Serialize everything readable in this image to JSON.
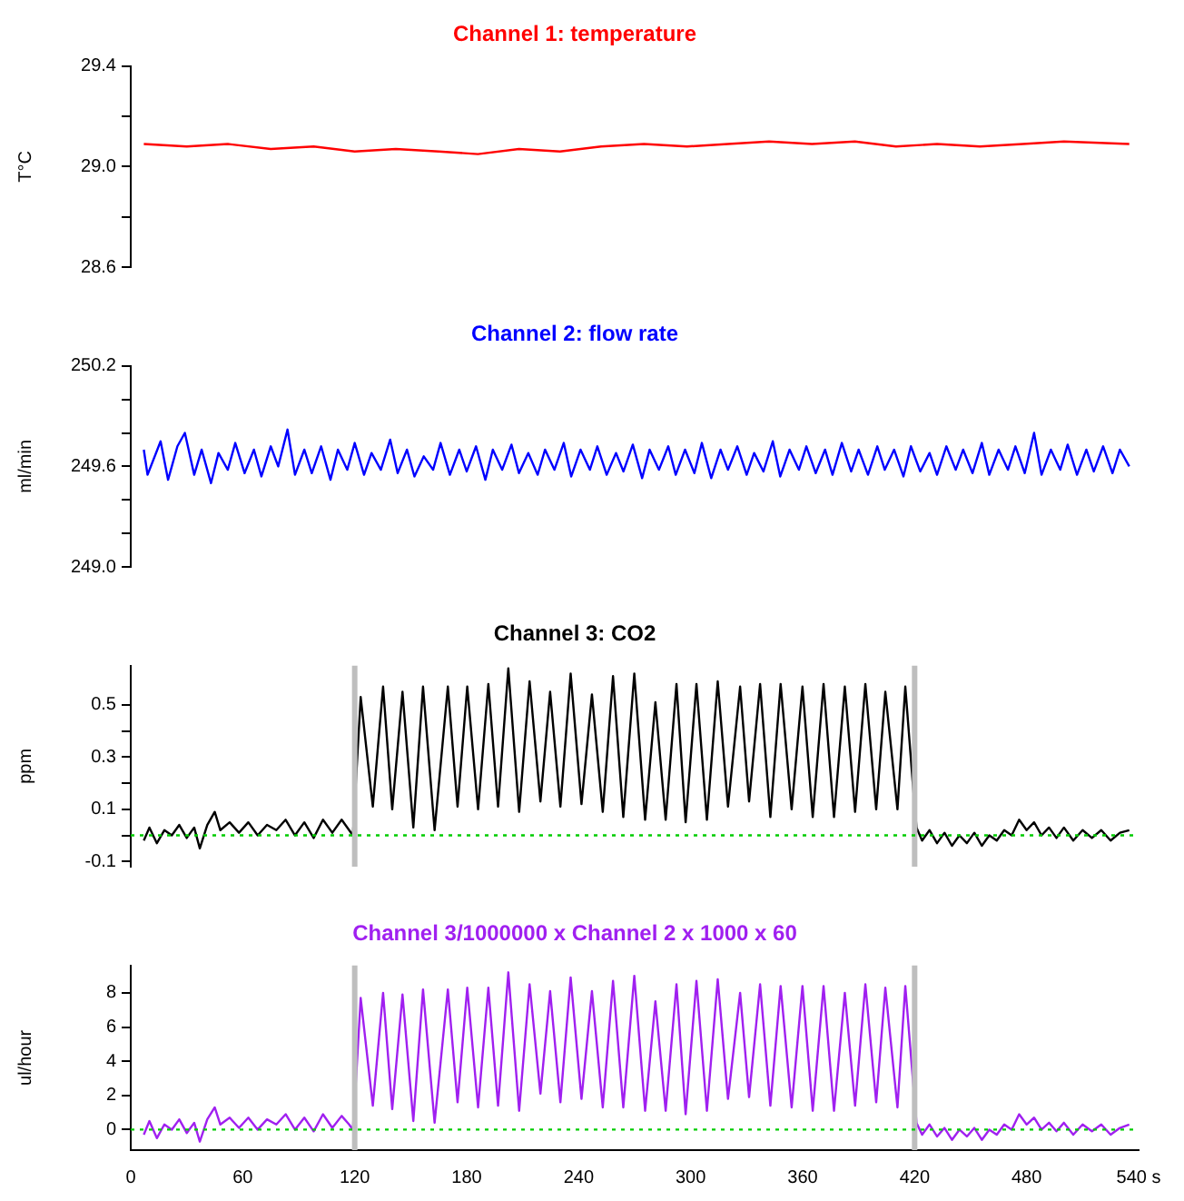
{
  "chart_data": [
    {
      "type": "line",
      "title": "Channel 1: temperature",
      "ylabel": "T°C",
      "xlim": [
        0,
        540
      ],
      "ylim": [
        28.6,
        29.4
      ],
      "yticks": [
        28.6,
        {
          "value": 28.8,
          "label": null
        },
        {
          "value": 29,
          "label": "29.0"
        },
        {
          "value": 29.2,
          "label": null
        },
        29.4
      ],
      "tick_labels": "y",
      "series": [
        {
          "color": "#ff0000",
          "x": [
            7,
            30,
            52,
            75,
            98,
            120,
            142,
            165,
            186,
            208,
            230,
            252,
            275,
            298,
            320,
            342,
            365,
            388,
            410,
            432,
            455,
            478,
            500,
            535
          ],
          "values": [
            29.09,
            29.08,
            29.09,
            29.07,
            29.08,
            29.06,
            29.07,
            29.06,
            29.05,
            29.07,
            29.06,
            29.08,
            29.09,
            29.08,
            29.09,
            29.1,
            29.09,
            29.1,
            29.08,
            29.09,
            29.08,
            29.09,
            29.1,
            29.09
          ]
        }
      ]
    },
    {
      "type": "line",
      "title": "Channel 2: flow rate",
      "ylabel": "ml/min",
      "xlim": [
        0,
        540
      ],
      "ylim": [
        249,
        250.2
      ],
      "yticks": [
        {
          "value": 249,
          "label": "249.0"
        },
        {
          "value": 249.2,
          "label": null
        },
        {
          "value": 249.4,
          "label": null
        },
        249.6,
        {
          "value": 249.8,
          "label": null
        },
        {
          "value": 250,
          "label": null
        },
        250.2
      ],
      "tick_labels": "y",
      "series": [
        {
          "color": "#0000ff",
          "x": [
            7,
            9,
            16,
            20,
            25,
            29,
            34,
            38,
            43,
            47,
            52,
            56,
            61,
            66,
            70,
            75,
            79,
            84,
            88,
            93,
            97,
            102,
            107,
            111,
            116,
            120,
            125,
            129,
            134,
            139,
            143,
            148,
            152,
            157,
            162,
            166,
            171,
            176,
            180,
            185,
            190,
            194,
            199,
            204,
            208,
            213,
            218,
            222,
            227,
            232,
            236,
            241,
            246,
            250,
            255,
            260,
            264,
            269,
            274,
            278,
            283,
            288,
            292,
            297,
            302,
            306,
            311,
            316,
            320,
            325,
            330,
            334,
            339,
            344,
            348,
            353,
            358,
            362,
            367,
            372,
            376,
            381,
            386,
            390,
            395,
            400,
            404,
            409,
            414,
            418,
            423,
            428,
            432,
            437,
            442,
            446,
            451,
            456,
            460,
            465,
            470,
            474,
            479,
            484,
            488,
            493,
            498,
            502,
            507,
            512,
            516,
            521,
            526,
            530,
            535
          ],
          "values": [
            249.7,
            249.55,
            249.75,
            249.52,
            249.72,
            249.8,
            249.55,
            249.7,
            249.5,
            249.68,
            249.58,
            249.74,
            249.56,
            249.7,
            249.54,
            249.72,
            249.6,
            249.82,
            249.55,
            249.7,
            249.56,
            249.72,
            249.52,
            249.7,
            249.58,
            249.74,
            249.55,
            249.68,
            249.58,
            249.76,
            249.56,
            249.7,
            249.54,
            249.66,
            249.58,
            249.74,
            249.55,
            249.7,
            249.57,
            249.72,
            249.52,
            249.7,
            249.58,
            249.73,
            249.56,
            249.68,
            249.55,
            249.7,
            249.58,
            249.74,
            249.54,
            249.7,
            249.58,
            249.72,
            249.55,
            249.68,
            249.57,
            249.73,
            249.53,
            249.7,
            249.58,
            249.72,
            249.55,
            249.7,
            249.56,
            249.74,
            249.53,
            249.7,
            249.58,
            249.72,
            249.55,
            249.68,
            249.57,
            249.75,
            249.54,
            249.7,
            249.58,
            249.72,
            249.56,
            249.7,
            249.55,
            249.74,
            249.57,
            249.7,
            249.55,
            249.72,
            249.58,
            249.7,
            249.54,
            249.72,
            249.57,
            249.68,
            249.55,
            249.72,
            249.58,
            249.7,
            249.56,
            249.74,
            249.55,
            249.7,
            249.58,
            249.72,
            249.56,
            249.8,
            249.55,
            249.7,
            249.58,
            249.73,
            249.55,
            249.7,
            249.57,
            249.72,
            249.56,
            249.7,
            249.6
          ]
        }
      ]
    },
    {
      "type": "line",
      "title": "Channel 3: CO2",
      "ylabel": "ppm",
      "xlim": [
        0,
        540
      ],
      "ylim": [
        -0.12,
        0.65
      ],
      "yticks": [
        -0.1,
        {
          "value": 0,
          "label": null
        },
        0.1,
        {
          "value": 0.2,
          "label": null
        },
        0.3,
        {
          "value": 0.4,
          "label": null
        },
        0.5
      ],
      "tick_labels": "y",
      "ref_lines": [
        {
          "axis": "x",
          "value": 120,
          "color": "#bebebe"
        },
        {
          "axis": "x",
          "value": 420,
          "color": "#bebebe"
        },
        {
          "axis": "y",
          "value": 0,
          "color": "#00cc00",
          "line_style": "dotted"
        }
      ],
      "series": [
        {
          "color": "#000000",
          "x": [
            7,
            10,
            14,
            18,
            22,
            26,
            30,
            34,
            37,
            41,
            45,
            48,
            53,
            58,
            63,
            68,
            73,
            78,
            83,
            88,
            93,
            98,
            103,
            108,
            113,
            117,
            119,
            121,
            123.2,
            129.7,
            135.2,
            140.1,
            145.6,
            151.4,
            156.6,
            162.8,
            169.9,
            175.1,
            180.3,
            186.1,
            191.6,
            196.8,
            202.3,
            208.1,
            213.7,
            219.5,
            224.7,
            230.2,
            235.7,
            241.5,
            247.1,
            252.9,
            258.4,
            263.9,
            269.8,
            275.6,
            281.1,
            286.6,
            292.4,
            297.3,
            303.1,
            308.7,
            314.5,
            320,
            326.5,
            331.3,
            337.2,
            342.7,
            348.2,
            354.1,
            359.9,
            365.4,
            371.2,
            376.8,
            382.6,
            388.1,
            393.6,
            399.4,
            404.3,
            410.8,
            415,
            419,
            421,
            424,
            428,
            432,
            436,
            440,
            444,
            448,
            452,
            456,
            460,
            464,
            468,
            472,
            476,
            480,
            484,
            488,
            492,
            496,
            500,
            505,
            510,
            515,
            520,
            525,
            530,
            535
          ],
          "values": [
            -0.02,
            0.03,
            -0.03,
            0.02,
            0,
            0.04,
            -0.01,
            0.03,
            -0.05,
            0.04,
            0.09,
            0.02,
            0.05,
            0.01,
            0.05,
            0,
            0.04,
            0.02,
            0.06,
            0,
            0.05,
            -0.01,
            0.06,
            0.01,
            0.06,
            0.02,
            0,
            0.25,
            0.53,
            0.11,
            0.57,
            0.1,
            0.55,
            0.03,
            0.57,
            0.02,
            0.57,
            0.11,
            0.57,
            0.1,
            0.58,
            0.11,
            0.64,
            0.09,
            0.59,
            0.13,
            0.55,
            0.11,
            0.62,
            0.12,
            0.54,
            0.09,
            0.61,
            0.07,
            0.62,
            0.06,
            0.51,
            0.06,
            0.58,
            0.05,
            0.58,
            0.06,
            0.59,
            0.11,
            0.57,
            0.13,
            0.58,
            0.07,
            0.58,
            0.1,
            0.57,
            0.07,
            0.58,
            0.07,
            0.57,
            0.09,
            0.58,
            0.1,
            0.55,
            0.1,
            0.57,
            0.2,
            0.03,
            -0.02,
            0.02,
            -0.03,
            0.01,
            -0.04,
            0,
            -0.03,
            0.01,
            -0.04,
            0,
            -0.02,
            0.02,
            0,
            0.06,
            0.02,
            0.05,
            0,
            0.03,
            -0.01,
            0.03,
            -0.02,
            0.02,
            -0.01,
            0.02,
            -0.02,
            0.01,
            0.02
          ]
        }
      ]
    },
    {
      "type": "line",
      "title": "Channel 3/1000000 x Channel 2 x 1000 x 60",
      "ylabel": "ul/hour",
      "xlim": [
        0,
        540
      ],
      "xticks": [
        0,
        60,
        120,
        180,
        240,
        300,
        360,
        420,
        480,
        {
          "value": 540,
          "label": "540 s"
        }
      ],
      "ylim": [
        -1.2,
        9.6
      ],
      "yticks": [
        0,
        2,
        4,
        6,
        8
      ],
      "ref_lines": [
        {
          "axis": "x",
          "value": 120,
          "color": "#bebebe"
        },
        {
          "axis": "x",
          "value": 420,
          "color": "#bebebe"
        },
        {
          "axis": "y",
          "value": 0,
          "color": "#00cc00",
          "line_style": "dotted"
        }
      ],
      "series": [
        {
          "color": "#a020f0",
          "x": [
            7,
            10,
            14,
            18,
            22,
            26,
            30,
            34,
            37,
            41,
            45,
            48,
            53,
            58,
            63,
            68,
            73,
            78,
            83,
            88,
            93,
            98,
            103,
            108,
            113,
            117,
            119,
            121,
            123.2,
            129.7,
            135.2,
            140.1,
            145.6,
            151.4,
            156.6,
            162.8,
            169.9,
            175.1,
            180.3,
            186.1,
            191.6,
            196.8,
            202.3,
            208.1,
            213.7,
            219.5,
            224.7,
            230.2,
            235.7,
            241.5,
            247.1,
            252.9,
            258.4,
            263.9,
            269.8,
            275.6,
            281.1,
            286.6,
            292.4,
            297.3,
            303.1,
            308.7,
            314.5,
            320,
            326.5,
            331.3,
            337.2,
            342.7,
            348.2,
            354.1,
            359.9,
            365.4,
            371.2,
            376.8,
            382.6,
            388.1,
            393.6,
            399.4,
            404.3,
            410.8,
            415,
            419,
            421,
            424,
            428,
            432,
            436,
            440,
            444,
            448,
            452,
            456,
            460,
            464,
            468,
            472,
            476,
            480,
            484,
            488,
            492,
            496,
            500,
            505,
            510,
            515,
            520,
            525,
            530,
            535
          ],
          "values": [
            -0.3,
            0.5,
            -0.5,
            0.3,
            0,
            0.6,
            -0.2,
            0.4,
            -0.7,
            0.6,
            1.3,
            0.3,
            0.7,
            0.1,
            0.7,
            0,
            0.6,
            0.3,
            0.9,
            0,
            0.7,
            -0.1,
            0.9,
            0.1,
            0.8,
            0.3,
            0,
            3.5,
            7.7,
            1.4,
            8,
            1.2,
            7.9,
            0.5,
            8.2,
            0.4,
            8.2,
            1.6,
            8.3,
            1.3,
            8.3,
            1.4,
            9.2,
            1.1,
            8.5,
            2.1,
            8.1,
            1.6,
            8.9,
            1.8,
            8.1,
            1.3,
            8.7,
            1.3,
            9,
            1.1,
            7.5,
            1.1,
            8.5,
            0.9,
            8.7,
            1.1,
            8.8,
            1.8,
            8,
            1.9,
            8.5,
            1.4,
            8.4,
            1.3,
            8.4,
            1.1,
            8.4,
            1.1,
            8,
            1.4,
            8.5,
            1.6,
            8.3,
            1.3,
            8.4,
            3,
            0.4,
            -0.3,
            0.3,
            -0.4,
            0.1,
            -0.6,
            0,
            -0.4,
            0.1,
            -0.6,
            0,
            -0.3,
            0.3,
            0,
            0.9,
            0.3,
            0.7,
            0,
            0.4,
            -0.1,
            0.4,
            -0.3,
            0.3,
            -0.1,
            0.3,
            -0.3,
            0.1,
            0.3
          ]
        }
      ]
    }
  ]
}
